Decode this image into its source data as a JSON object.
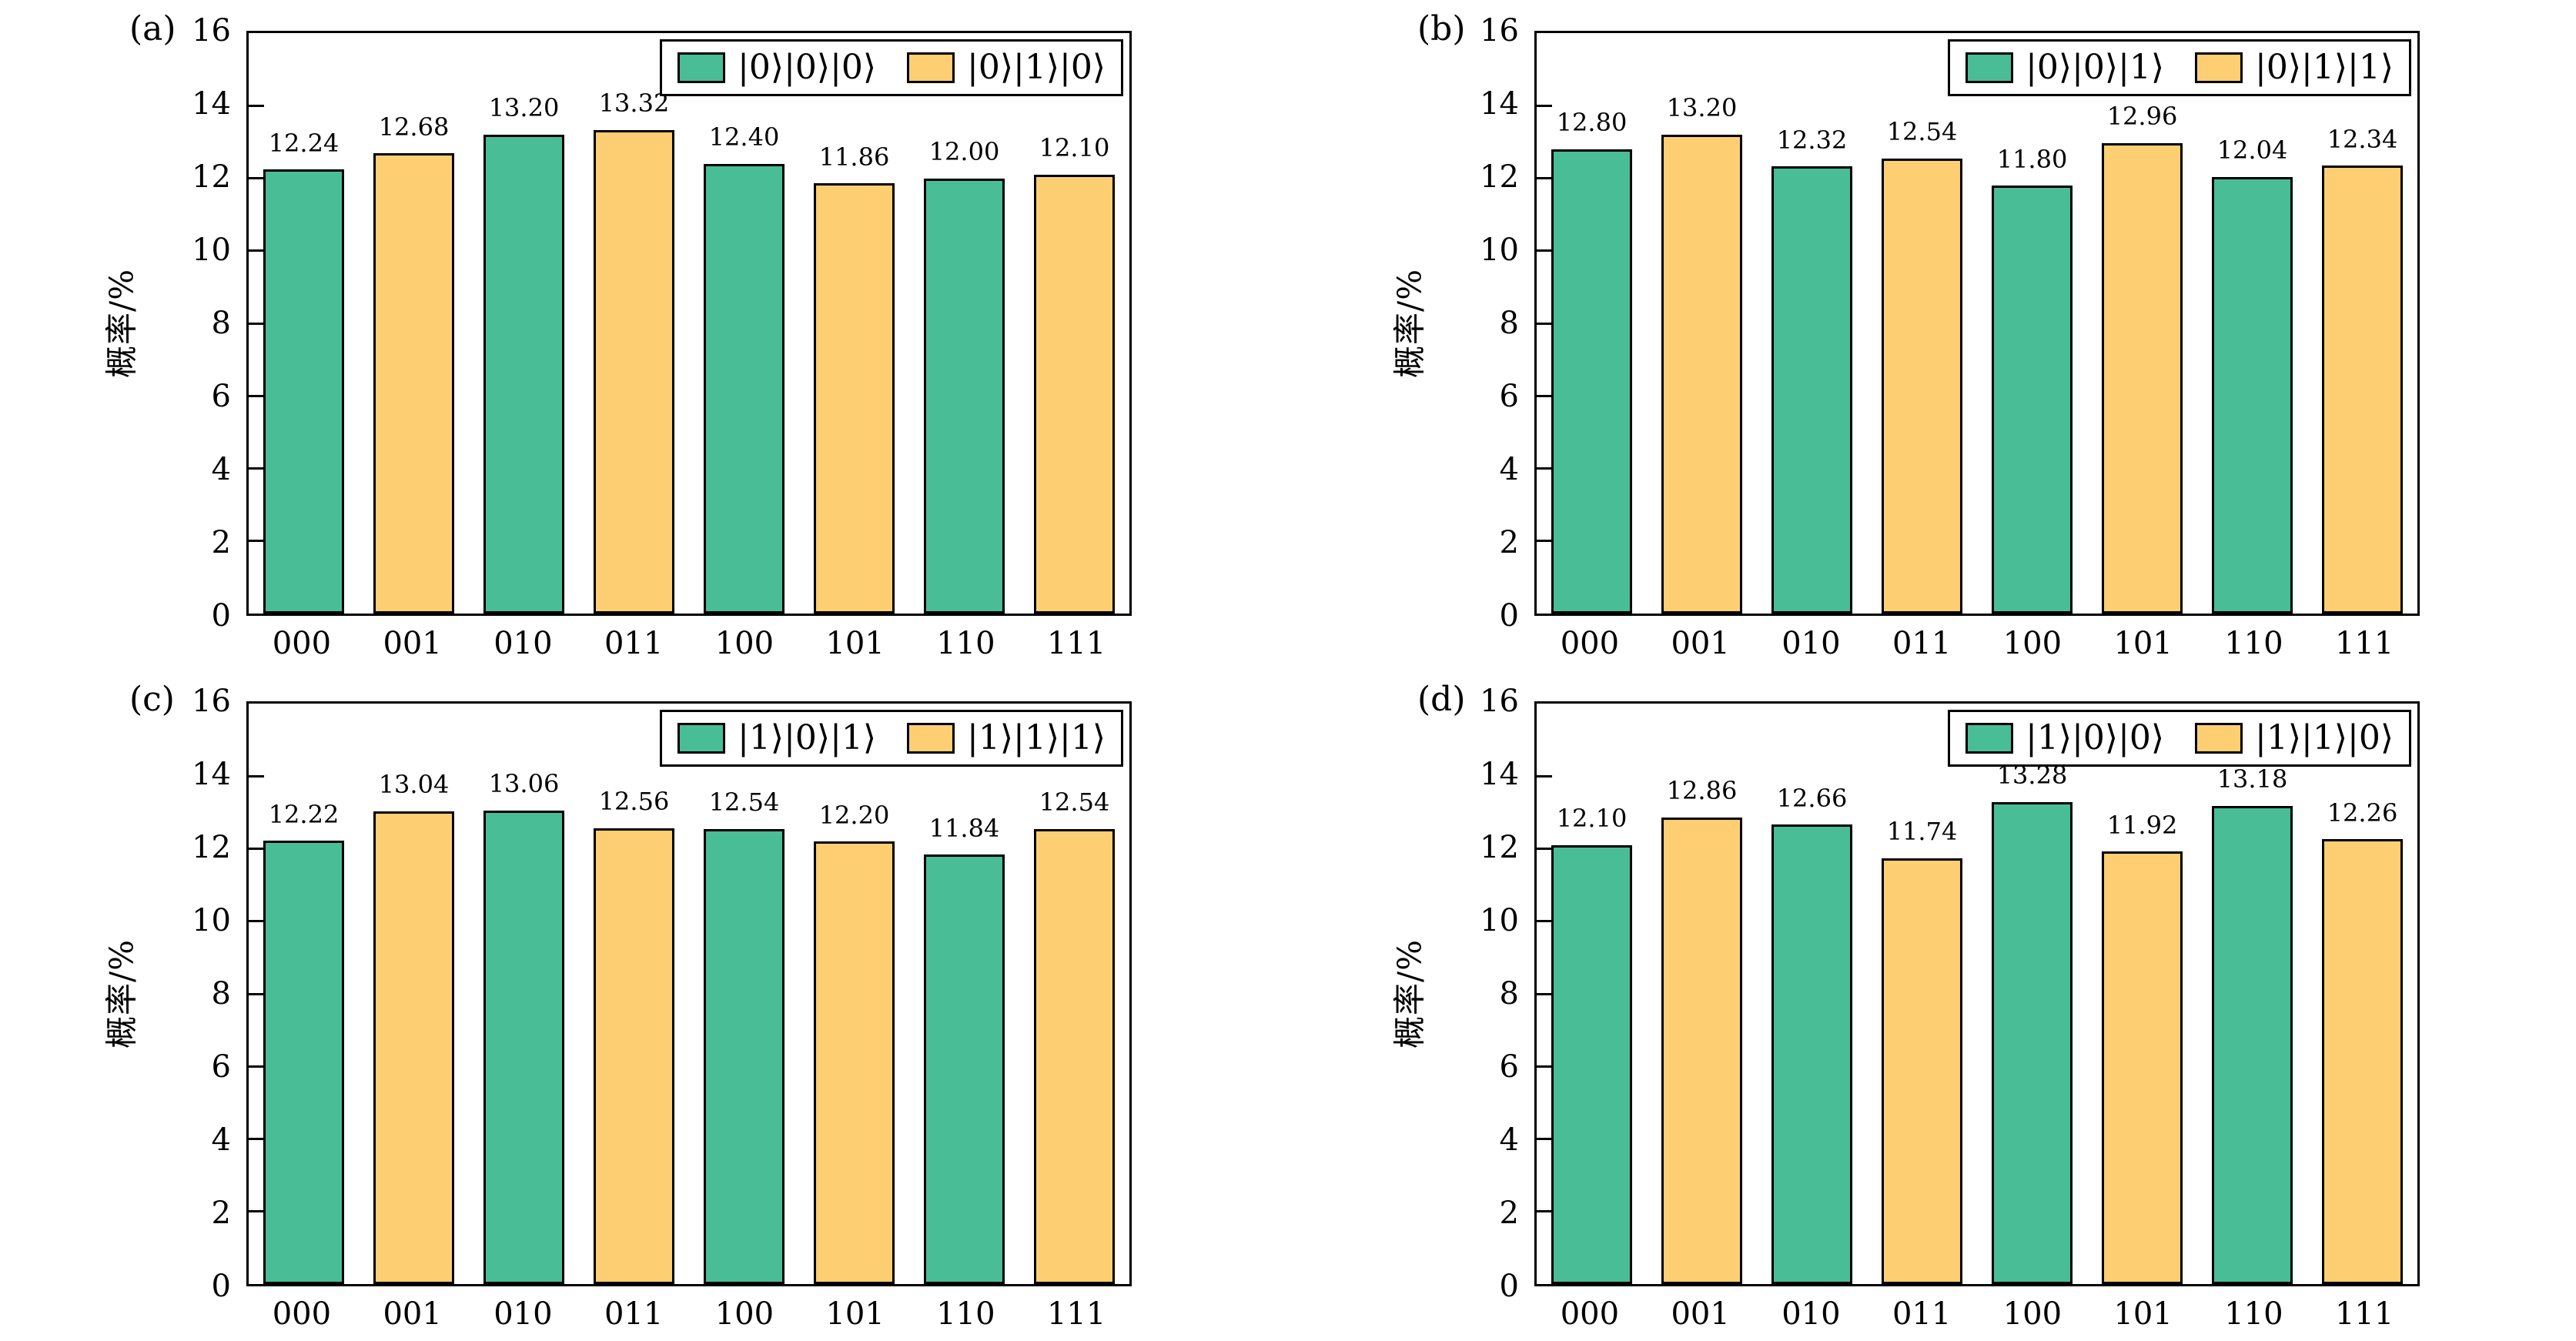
{
  "figure": {
    "ylabel": "概率/%",
    "yticks": [
      0,
      2,
      4,
      6,
      8,
      10,
      12,
      14,
      16
    ],
    "categories": [
      "000",
      "001",
      "010",
      "011",
      "100",
      "101",
      "110",
      "111"
    ],
    "colors": {
      "green": "#49bd96",
      "yellow": "#fdce72",
      "edge": "#000000"
    }
  },
  "chart_data": [
    {
      "type": "bar",
      "panel": "(a)",
      "categories": [
        "000",
        "001",
        "010",
        "011",
        "100",
        "101",
        "110",
        "111"
      ],
      "values": [
        12.24,
        12.68,
        13.2,
        13.32,
        12.4,
        11.86,
        12.0,
        12.1
      ],
      "series_labels": [
        "|0⟩|0⟩|0⟩",
        "|0⟩|1⟩|0⟩"
      ],
      "bar_color_pattern": [
        "green",
        "yellow"
      ],
      "ylabel": "概率/%",
      "ylim": [
        0,
        16
      ],
      "yticks": [
        0,
        2,
        4,
        6,
        8,
        10,
        12,
        14,
        16
      ],
      "legend_position": "upper right",
      "grid": false
    },
    {
      "type": "bar",
      "panel": "(b)",
      "categories": [
        "000",
        "001",
        "010",
        "011",
        "100",
        "101",
        "110",
        "111"
      ],
      "values": [
        12.8,
        13.2,
        12.32,
        12.54,
        11.8,
        12.96,
        12.04,
        12.34
      ],
      "series_labels": [
        "|0⟩|0⟩|1⟩",
        "|0⟩|1⟩|1⟩"
      ],
      "bar_color_pattern": [
        "green",
        "yellow"
      ],
      "ylabel": "概率/%",
      "ylim": [
        0,
        16
      ],
      "yticks": [
        0,
        2,
        4,
        6,
        8,
        10,
        12,
        14,
        16
      ],
      "legend_position": "upper right",
      "grid": false
    },
    {
      "type": "bar",
      "panel": "(c)",
      "categories": [
        "000",
        "001",
        "010",
        "011",
        "100",
        "101",
        "110",
        "111"
      ],
      "values": [
        12.22,
        13.04,
        13.06,
        12.56,
        12.54,
        12.2,
        11.84,
        12.54
      ],
      "series_labels": [
        "|1⟩|0⟩|1⟩",
        "|1⟩|1⟩|1⟩"
      ],
      "bar_color_pattern": [
        "green",
        "yellow"
      ],
      "ylabel": "概率/%",
      "ylim": [
        0,
        16
      ],
      "yticks": [
        0,
        2,
        4,
        6,
        8,
        10,
        12,
        14,
        16
      ],
      "legend_position": "upper right",
      "grid": false
    },
    {
      "type": "bar",
      "panel": "(d)",
      "categories": [
        "000",
        "001",
        "010",
        "011",
        "100",
        "101",
        "110",
        "111"
      ],
      "values": [
        12.1,
        12.86,
        12.66,
        11.74,
        13.28,
        11.92,
        13.18,
        12.26
      ],
      "series_labels": [
        "|1⟩|0⟩|0⟩",
        "|1⟩|1⟩|0⟩"
      ],
      "bar_color_pattern": [
        "green",
        "yellow"
      ],
      "ylabel": "概率/%",
      "ylim": [
        0,
        16
      ],
      "yticks": [
        0,
        2,
        4,
        6,
        8,
        10,
        12,
        14,
        16
      ],
      "legend_position": "upper right",
      "grid": false
    }
  ]
}
